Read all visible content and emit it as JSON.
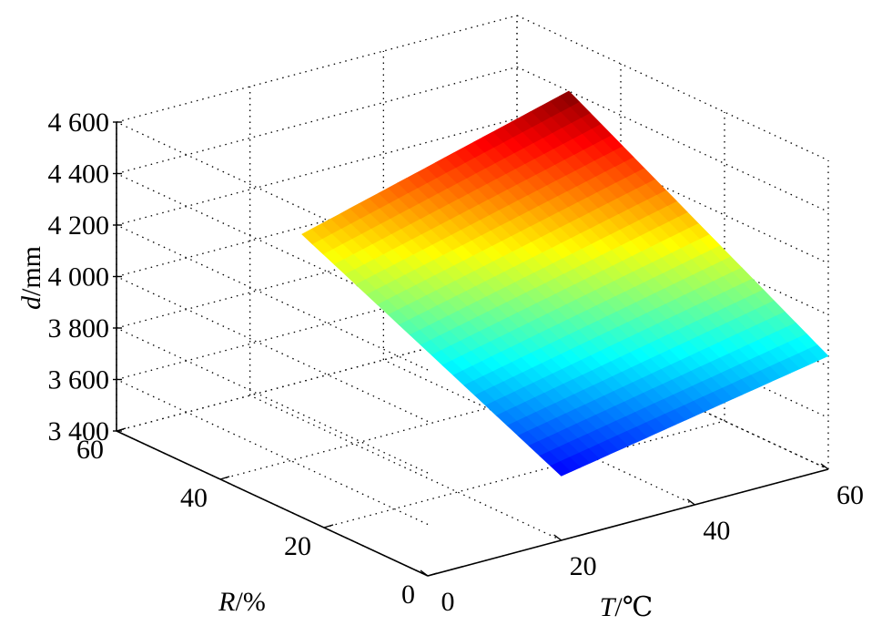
{
  "chart_data": {
    "type": "surface3d",
    "title": "",
    "zlabel": {
      "var": "d",
      "unit": "/mm"
    },
    "xlabel": {
      "var": "T",
      "unit": "/℃"
    },
    "ylabel": {
      "var": "R",
      "unit": "/%"
    },
    "zlim": [
      3400,
      4600
    ],
    "xlim": [
      0,
      60
    ],
    "ylim": [
      0,
      60
    ],
    "z_ticks": [
      "3 400",
      "3 600",
      "3 800",
      "4 000",
      "4 200",
      "4 400",
      "4 600"
    ],
    "z_tick_values": [
      3400,
      3600,
      3800,
      4000,
      4200,
      4400,
      4600
    ],
    "x_ticks": [
      "0",
      "20",
      "40",
      "60"
    ],
    "x_tick_values": [
      0,
      20,
      40,
      60
    ],
    "y_ticks": [
      "0",
      "20",
      "40",
      "60"
    ],
    "y_tick_values": [
      0,
      20,
      40,
      60
    ],
    "grid": true,
    "colormap": "jet",
    "surface_domain": {
      "T": [
        20,
        60
      ],
      "R": [
        0,
        50
      ]
    },
    "corner_values": [
      {
        "T": 20,
        "R": 50,
        "d": 4120
      },
      {
        "T": 20,
        "R": 0,
        "d": 3650
      },
      {
        "T": 60,
        "R": 50,
        "d": 4400
      },
      {
        "T": 60,
        "R": 0,
        "d": 3840
      }
    ]
  }
}
